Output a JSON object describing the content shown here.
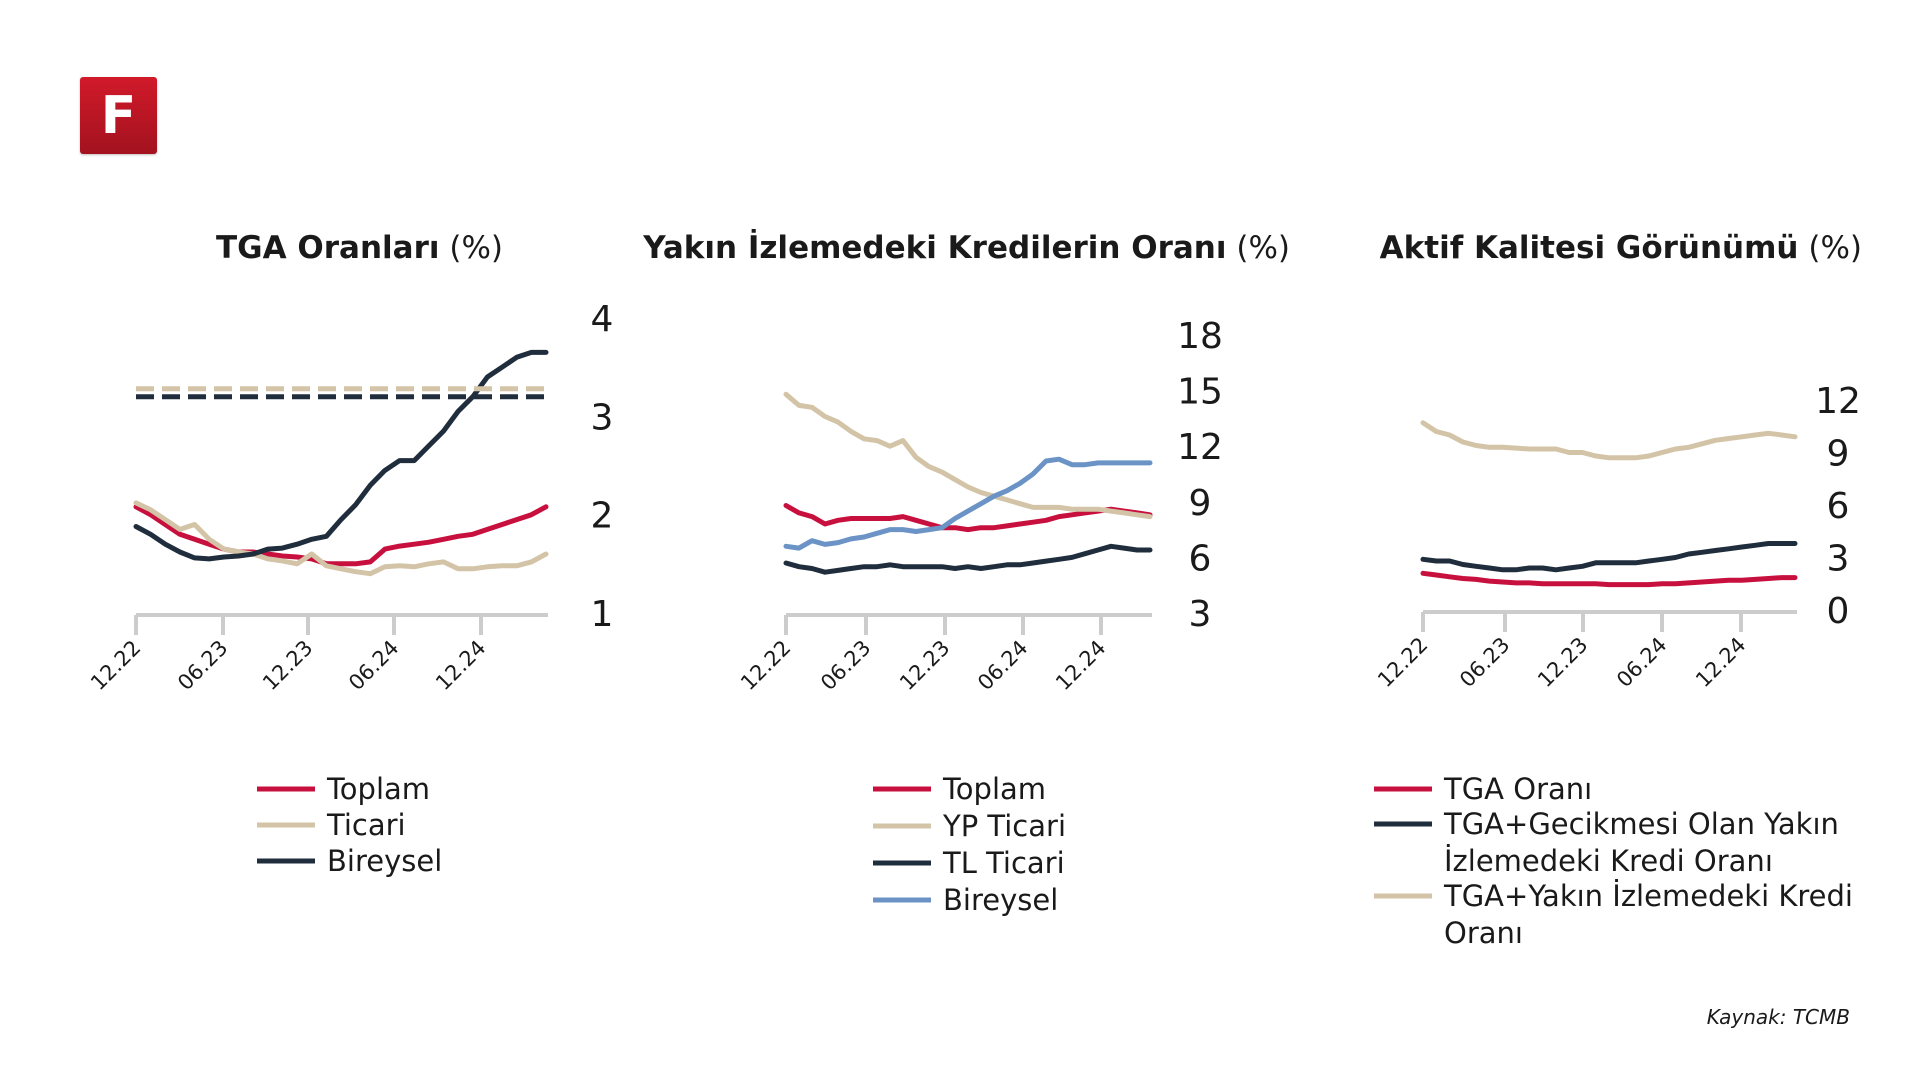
{
  "logo": {
    "letter": "F"
  },
  "source": "Kaynak: TCMB",
  "colors": {
    "red": "#c8103e",
    "beige": "#d3c4a7",
    "navy": "#1f2d3d",
    "blue": "#6b93c6",
    "axis": "#cccccc"
  },
  "chart_data": [
    {
      "type": "line",
      "title_bold": "TGA Oranları",
      "title_unit": "(%)",
      "x_ticks": [
        "12.22",
        "06.23",
        "12.23",
        "06.24",
        "12.24"
      ],
      "ylim": [
        1,
        4
      ],
      "y_ticks": [
        1,
        2,
        3,
        4
      ],
      "legend_position": "bottom",
      "series": [
        {
          "name": "Toplam",
          "color": "red",
          "x": [
            0,
            1,
            2,
            3,
            4,
            5,
            6,
            7,
            8,
            9,
            10,
            11,
            12,
            13,
            14,
            15,
            16,
            17,
            18,
            19,
            20,
            21,
            22,
            23,
            24,
            25,
            26,
            27,
            28
          ],
          "values": [
            2.08,
            2.0,
            1.9,
            1.8,
            1.75,
            1.7,
            1.65,
            1.62,
            1.62,
            1.6,
            1.58,
            1.57,
            1.55,
            1.5,
            1.5,
            1.5,
            1.52,
            1.65,
            1.68,
            1.7,
            1.72,
            1.75,
            1.78,
            1.8,
            1.85,
            1.9,
            1.95,
            2.0,
            2.08
          ]
        },
        {
          "name": "Ticari",
          "color": "beige",
          "x": [
            0,
            1,
            2,
            3,
            4,
            5,
            6,
            7,
            8,
            9,
            10,
            11,
            12,
            13,
            14,
            15,
            16,
            17,
            18,
            19,
            20,
            21,
            22,
            23,
            24,
            25,
            26,
            27,
            28
          ],
          "values": [
            2.12,
            2.05,
            1.95,
            1.85,
            1.9,
            1.75,
            1.65,
            1.62,
            1.6,
            1.55,
            1.53,
            1.5,
            1.6,
            1.48,
            1.45,
            1.42,
            1.4,
            1.47,
            1.48,
            1.47,
            1.5,
            1.52,
            1.45,
            1.45,
            1.47,
            1.48,
            1.48,
            1.52,
            1.6
          ]
        },
        {
          "name": "Bireysel",
          "color": "navy",
          "x": [
            0,
            1,
            2,
            3,
            4,
            5,
            6,
            7,
            8,
            9,
            10,
            11,
            12,
            13,
            14,
            15,
            16,
            17,
            18,
            19,
            20,
            21,
            22,
            23,
            24,
            25,
            26,
            27,
            28
          ],
          "values": [
            1.88,
            1.8,
            1.7,
            1.62,
            1.56,
            1.55,
            1.57,
            1.58,
            1.6,
            1.65,
            1.66,
            1.7,
            1.75,
            1.78,
            1.95,
            2.1,
            2.3,
            2.45,
            2.55,
            2.55,
            2.7,
            2.85,
            3.05,
            3.2,
            3.4,
            3.5,
            3.6,
            3.65,
            3.65
          ]
        },
        {
          "name": "",
          "color": "beige",
          "dashed": true,
          "x": [
            0,
            28
          ],
          "values": [
            3.28,
            3.28
          ]
        },
        {
          "name": "",
          "color": "navy",
          "dashed": true,
          "x": [
            0,
            28
          ],
          "values": [
            3.2,
            3.2
          ]
        }
      ]
    },
    {
      "type": "line",
      "title_bold": "Yakın İzlemedeki Kredilerin Oranı",
      "title_unit": "(%)",
      "x_ticks": [
        "12.22",
        "06.23",
        "12.23",
        "06.24",
        "12.24"
      ],
      "ylim": [
        3,
        18
      ],
      "y_ticks": [
        3,
        6,
        9,
        12,
        15,
        18
      ],
      "legend_position": "bottom",
      "series": [
        {
          "name": "Toplam",
          "color": "red",
          "x": [
            0,
            1,
            2,
            3,
            4,
            5,
            6,
            7,
            8,
            9,
            10,
            11,
            12,
            13,
            14,
            15,
            16,
            17,
            18,
            19,
            20,
            21,
            22,
            23,
            24,
            25,
            26,
            27,
            28
          ],
          "values": [
            8.8,
            8.4,
            8.2,
            7.8,
            8.0,
            8.1,
            8.1,
            8.1,
            8.1,
            8.2,
            8.0,
            7.8,
            7.6,
            7.6,
            7.5,
            7.6,
            7.6,
            7.7,
            7.8,
            7.9,
            8.0,
            8.2,
            8.3,
            8.4,
            8.5,
            8.6,
            8.5,
            8.4,
            8.3
          ]
        },
        {
          "name": "YP Ticari",
          "color": "beige",
          "x": [
            0,
            1,
            2,
            3,
            4,
            5,
            6,
            7,
            8,
            9,
            10,
            11,
            12,
            13,
            14,
            15,
            16,
            17,
            18,
            19,
            20,
            21,
            22,
            23,
            24,
            25,
            26,
            27,
            28
          ],
          "values": [
            14.8,
            14.2,
            14.1,
            13.6,
            13.3,
            12.8,
            12.4,
            12.3,
            12.0,
            12.3,
            11.4,
            10.9,
            10.6,
            10.2,
            9.8,
            9.5,
            9.3,
            9.1,
            8.9,
            8.7,
            8.7,
            8.7,
            8.6,
            8.6,
            8.6,
            8.5,
            8.4,
            8.3,
            8.2
          ]
        },
        {
          "name": "TL Ticari",
          "color": "navy",
          "x": [
            0,
            1,
            2,
            3,
            4,
            5,
            6,
            7,
            8,
            9,
            10,
            11,
            12,
            13,
            14,
            15,
            16,
            17,
            18,
            19,
            20,
            21,
            22,
            23,
            24,
            25,
            26,
            27,
            28
          ],
          "values": [
            5.7,
            5.5,
            5.4,
            5.2,
            5.3,
            5.4,
            5.5,
            5.5,
            5.6,
            5.5,
            5.5,
            5.5,
            5.5,
            5.4,
            5.5,
            5.4,
            5.5,
            5.6,
            5.6,
            5.7,
            5.8,
            5.9,
            6.0,
            6.2,
            6.4,
            6.6,
            6.5,
            6.4,
            6.4
          ]
        },
        {
          "name": "Bireysel",
          "color": "blue",
          "x": [
            0,
            1,
            2,
            3,
            4,
            5,
            6,
            7,
            8,
            9,
            10,
            11,
            12,
            13,
            14,
            15,
            16,
            17,
            18,
            19,
            20,
            21,
            22,
            23,
            24,
            25,
            26,
            27,
            28
          ],
          "values": [
            6.6,
            6.5,
            6.9,
            6.7,
            6.8,
            7.0,
            7.1,
            7.3,
            7.5,
            7.5,
            7.4,
            7.5,
            7.6,
            8.1,
            8.5,
            8.9,
            9.3,
            9.6,
            10.0,
            10.5,
            11.2,
            11.3,
            11.0,
            11.0,
            11.1,
            11.1,
            11.1,
            11.1,
            11.1
          ]
        }
      ]
    },
    {
      "type": "line",
      "title_bold": "Aktif Kalitesi Görünümü",
      "title_unit": "(%)",
      "x_ticks": [
        "12.22",
        "06.23",
        "12.23",
        "06.24",
        "12.24"
      ],
      "ylim": [
        0,
        12
      ],
      "y_ticks": [
        0,
        3,
        6,
        9,
        12
      ],
      "legend_position": "bottom",
      "series": [
        {
          "name": "TGA Oranı",
          "color": "red",
          "x": [
            0,
            1,
            2,
            3,
            4,
            5,
            6,
            7,
            8,
            9,
            10,
            11,
            12,
            13,
            14,
            15,
            16,
            17,
            18,
            19,
            20,
            21,
            22,
            23,
            24,
            25,
            26,
            27,
            28
          ],
          "values": [
            2.1,
            2.0,
            1.9,
            1.8,
            1.75,
            1.65,
            1.6,
            1.55,
            1.55,
            1.5,
            1.5,
            1.5,
            1.5,
            1.5,
            1.45,
            1.45,
            1.45,
            1.45,
            1.5,
            1.5,
            1.55,
            1.6,
            1.65,
            1.7,
            1.7,
            1.75,
            1.8,
            1.85,
            1.85
          ]
        },
        {
          "name": "TGA+Gecikmesi Olan Yakın İzlemedeki Kredi Oranı",
          "color": "navy",
          "x": [
            0,
            1,
            2,
            3,
            4,
            5,
            6,
            7,
            8,
            9,
            10,
            11,
            12,
            13,
            14,
            15,
            16,
            17,
            18,
            19,
            20,
            21,
            22,
            23,
            24,
            25,
            26,
            27,
            28
          ],
          "values": [
            2.9,
            2.8,
            2.8,
            2.6,
            2.5,
            2.4,
            2.3,
            2.3,
            2.4,
            2.4,
            2.3,
            2.4,
            2.5,
            2.7,
            2.7,
            2.7,
            2.7,
            2.8,
            2.9,
            3.0,
            3.2,
            3.3,
            3.4,
            3.5,
            3.6,
            3.7,
            3.8,
            3.8,
            3.8
          ]
        },
        {
          "name": "TGA+Yakın İzlemedeki Kredi Oranı",
          "color": "beige",
          "x": [
            0,
            1,
            2,
            3,
            4,
            5,
            6,
            7,
            8,
            9,
            10,
            11,
            12,
            13,
            14,
            15,
            16,
            17,
            18,
            19,
            20,
            21,
            22,
            23,
            24,
            25,
            26,
            27,
            28
          ],
          "values": [
            10.7,
            10.2,
            10.0,
            9.6,
            9.4,
            9.3,
            9.3,
            9.25,
            9.2,
            9.2,
            9.2,
            9.0,
            9.0,
            8.8,
            8.7,
            8.7,
            8.7,
            8.8,
            9.0,
            9.2,
            9.3,
            9.5,
            9.7,
            9.8,
            9.9,
            10.0,
            10.1,
            10.0,
            9.9
          ]
        }
      ]
    }
  ]
}
